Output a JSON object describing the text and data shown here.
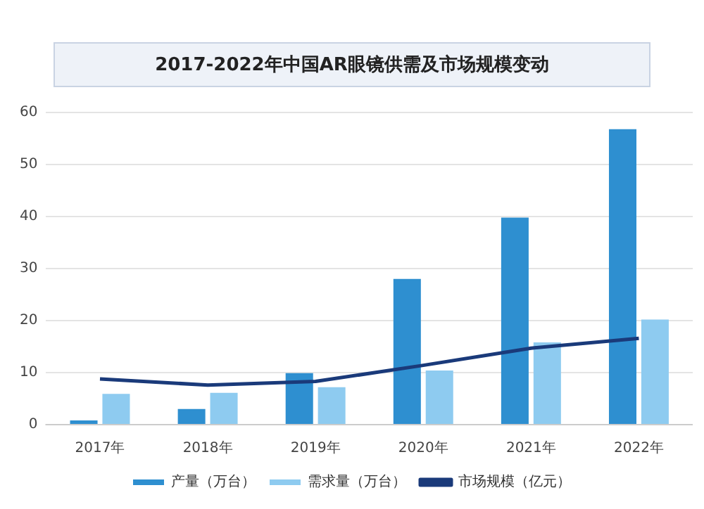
{
  "chart_data": {
    "type": "bar",
    "title": "2017-2022年中国AR眼镜供需及市场规模变动",
    "categories": [
      "2017年",
      "2018年",
      "2019年",
      "2020年",
      "2021年",
      "2022年"
    ],
    "series": [
      {
        "name": "产量（万台）",
        "color": "#2e8fd0",
        "values": [
          0.8,
          3,
          9.9,
          28,
          39.8,
          56.8
        ]
      },
      {
        "name": "需求量（万台）",
        "color": "#8ecbf0",
        "values": [
          5.9,
          6.1,
          7.2,
          10.4,
          15.8,
          20.2
        ]
      },
      {
        "name": "市场规模（亿元）",
        "type": "line",
        "color": "#1a3a7a",
        "values": [
          8.8,
          7.6,
          8.3,
          11.4,
          14.7,
          16.6
        ]
      }
    ],
    "ylim": [
      0,
      60
    ],
    "yticks": [
      0,
      10,
      20,
      30,
      40,
      50,
      60
    ],
    "grid": "y",
    "legend": "bottom",
    "marker": "none"
  }
}
